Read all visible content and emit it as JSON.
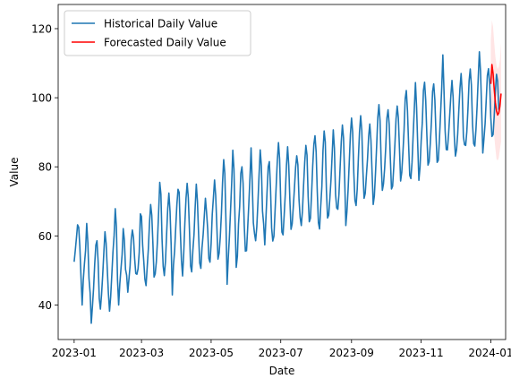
{
  "chart_data": {
    "type": "line",
    "title": "",
    "xlabel": "Date",
    "ylabel": "Value",
    "x_tick_labels": [
      "2023-01",
      "2023-03",
      "2023-05",
      "2023-07",
      "2023-09",
      "2023-11",
      "2024-01"
    ],
    "y_tick_labels": [
      "40",
      "60",
      "80",
      "100",
      "120"
    ],
    "xlim": [
      "2022-12-18",
      "2024-01-14"
    ],
    "ylim": [
      30,
      127
    ],
    "x_ticks": [
      "2023-01-01",
      "2023-03-01",
      "2023-05-01",
      "2023-07-01",
      "2023-09-01",
      "2023-11-01",
      "2024-01-01"
    ],
    "y_ticks": [
      40,
      60,
      80,
      100,
      120
    ],
    "grid": false,
    "legend_position": "top-left",
    "series": [
      {
        "name": "Historical Daily Value",
        "color": "#1f77b4",
        "start_date": "2023-01-01",
        "frequency": "daily",
        "values": [
          52.5,
          55.8,
          59.4,
          63.2,
          62.5,
          56.9,
          48.2,
          40.0,
          47.2,
          51.9,
          55.8,
          63.6,
          58.1,
          47.7,
          43.5,
          34.7,
          39.5,
          44.7,
          51.8,
          57.3,
          58.6,
          52.6,
          41.9,
          38.8,
          43.0,
          48.6,
          55.1,
          61.2,
          57.9,
          50.5,
          43.4,
          38.2,
          42.4,
          48.8,
          55.3,
          60.1,
          67.9,
          62.7,
          47.2,
          40.0,
          46.1,
          50.4,
          54.5,
          62.1,
          58.8,
          50.3,
          48.6,
          43.7,
          47.5,
          51.3,
          58.9,
          61.7,
          59.5,
          53.4,
          49.1,
          48.9,
          50.5,
          55.2,
          66.4,
          65.6,
          57.3,
          52.6,
          47.4,
          45.6,
          51.0,
          56.2,
          63.7,
          69.1,
          66.0,
          57.7,
          48.1,
          49.0,
          52.5,
          58.7,
          66.8,
          75.5,
          72.1,
          59.1,
          51.2,
          48.5,
          52.6,
          60.5,
          68.0,
          72.4,
          67.1,
          57.2,
          42.9,
          51.5,
          55.6,
          62.5,
          69.1,
          73.5,
          72.6,
          61.5,
          52.9,
          48.4,
          55.0,
          63.8,
          70.9,
          75.2,
          71.1,
          61.9,
          51.3,
          49.6,
          55.8,
          60.4,
          68.2,
          75.0,
          70.1,
          60.7,
          52.2,
          50.6,
          56.5,
          60.3,
          65.7,
          70.9,
          66.8,
          61.9,
          53.5,
          52.4,
          57.8,
          66.3,
          71.1,
          76.2,
          71.7,
          62.8,
          53.3,
          55.0,
          59.6,
          66.4,
          75.4,
          82.1,
          78.1,
          64.0,
          46.0,
          53.5,
          59.6,
          67.3,
          75.2,
          84.8,
          79.4,
          64.0,
          50.9,
          54.1,
          63.5,
          68.5,
          78.1,
          80.0,
          75.2,
          63.2,
          55.6,
          55.7,
          62.1,
          69.1,
          76.7,
          85.5,
          75.5,
          63.8,
          60.7,
          58.6,
          62.6,
          69.6,
          77.7,
          84.9,
          80.3,
          67.2,
          63.5,
          57.4,
          65.0,
          72.8,
          80.0,
          81.5,
          74.0,
          62.3,
          58.5,
          59.9,
          67.1,
          74.4,
          81.9,
          87.0,
          82.2,
          69.6,
          61.1,
          60.3,
          66.0,
          72.3,
          80.4,
          85.8,
          80.4,
          70.2,
          61.9,
          63.5,
          68.5,
          73.9,
          79.8,
          83.2,
          80.6,
          70.5,
          65.3,
          63.0,
          67.2,
          74.7,
          81.4,
          86.2,
          83.4,
          71.4,
          64.1,
          65.1,
          72.1,
          80.3,
          86.5,
          89.0,
          84.3,
          72.7,
          63.8,
          62.0,
          68.5,
          74.2,
          84.7,
          90.4,
          87.2,
          73.3,
          65.2,
          66.0,
          70.8,
          76.2,
          83.3,
          90.7,
          85.4,
          72.1,
          68.1,
          67.7,
          72.2,
          79.8,
          87.2,
          92.1,
          88.3,
          76.6,
          63.0,
          67.2,
          73.4,
          81.2,
          89.3,
          94.1,
          90.1,
          78.2,
          70.3,
          68.8,
          73.6,
          82.4,
          90.1,
          94.8,
          90.5,
          78.6,
          70.9,
          72.3,
          77.4,
          82.2,
          88.8,
          92.4,
          87.7,
          78.3,
          69.1,
          71.6,
          78.2,
          86.0,
          94.2,
          98.0,
          93.3,
          80.8,
          73.2,
          75.1,
          79.6,
          85.8,
          94.1,
          96.5,
          92.2,
          82.5,
          73.6,
          74.4,
          79.9,
          86.5,
          93.9,
          97.6,
          94.2,
          85.3,
          75.9,
          78.4,
          83.9,
          90.4,
          99.7,
          102.1,
          96.3,
          86.6,
          77.5,
          76.6,
          81.2,
          89.3,
          96.8,
          104.4,
          97.2,
          86.3,
          76.1,
          79.8,
          87.4,
          92.8,
          102.1,
          104.5,
          99.3,
          89.2,
          80.5,
          81.5,
          86.8,
          93.1,
          101.8,
          104.0,
          99.4,
          89.4,
          81.3,
          81.9,
          87.9,
          95.3,
          102.8,
          112.4,
          102.1,
          90.4,
          85.0,
          84.9,
          89.4,
          94.9,
          100.6,
          105.0,
          100.1,
          89.1,
          83.1,
          84.9,
          89.5,
          96.4,
          102.8,
          107.0,
          101.2,
          88.7,
          86.4,
          86.2,
          90.2,
          96.8,
          104.9,
          108.3,
          103.7,
          92.4,
          86.7,
          86.0,
          90.8,
          97.5,
          105.7,
          113.3,
          107.7,
          96.6,
          84.0,
          88.1,
          92.4,
          99.4,
          106.4,
          108.4,
          104.2,
          94.3,
          88.8,
          89.3,
          94.7,
          101.7,
          106.8,
          104.8,
          96.5
        ]
      },
      {
        "name": "Forecasted Daily Value",
        "color": "#ff0000",
        "start_date": "2024-01-01",
        "frequency": "daily",
        "values": [
          104.0,
          109.6,
          107.0,
          102.5,
          98.6,
          96.2,
          95.0,
          95.6,
          97.6,
          101.2
        ],
        "lower": [
          91.0,
          96.0,
          93.5,
          89.0,
          85.3,
          82.3,
          81.8,
          82.6,
          85.0,
          87.3
        ],
        "upper": [
          116.8,
          122.5,
          120.5,
          116.0,
          112.0,
          109.5,
          108.3,
          109.0,
          111.0,
          115.9
        ]
      }
    ]
  }
}
